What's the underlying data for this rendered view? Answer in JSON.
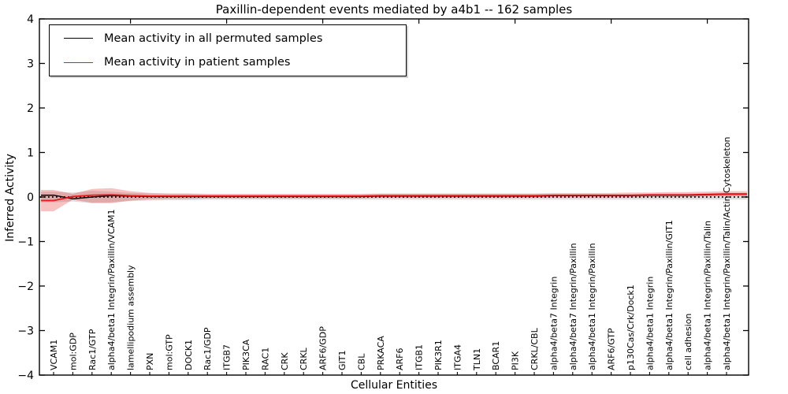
{
  "figure": {
    "title": "Paxillin-dependent events mediated by a4b1 -- 162 samples",
    "xlabel": "Cellular Entities",
    "ylabel": "Inferred Activity",
    "legend": [
      {
        "label": "Mean activity in all permuted samples",
        "color": "#000000"
      },
      {
        "label": "Mean activity in patient samples",
        "color": "#e41a1c"
      }
    ]
  },
  "chart_data": {
    "type": "line",
    "title": "Paxillin-dependent events mediated by a4b1 -- 162 samples",
    "xlabel": "Cellular Entities",
    "ylabel": "Inferred Activity",
    "ylim": [
      -4,
      4
    ],
    "yticks": [
      4,
      3,
      2,
      1,
      0,
      -1,
      -2,
      -3,
      -4
    ],
    "grid": false,
    "legend_position": "upper left",
    "zero_line": {
      "y": 0,
      "style": "dotted",
      "color": "#000000"
    },
    "categories": [
      "VCAM1",
      "mol:GDP",
      "Rac1/GTP",
      "alpha4/beta1 Integrin/Paxillin/VCAM1",
      "lamellipodium assembly",
      "PXN",
      "mol:GTP",
      "DOCK1",
      "Rac1/GDP",
      "ITGB7",
      "PIK3CA",
      "RAC1",
      "CRK",
      "CRKL",
      "ARF6/GDP",
      "GIT1",
      "CBL",
      "PRKACA",
      "ARF6",
      "ITGB1",
      "PIK3R1",
      "ITGA4",
      "TLN1",
      "BCAR1",
      "PI3K",
      "CRKL/CBL",
      "alpha4/beta7 Integrin",
      "alpha4/beta7 Integrin/Paxillin",
      "alpha4/beta1 Integrin/Paxillin",
      "ARF6/GTP",
      "p130Cas/Crk/Dock1",
      "alpha4/beta1 Integrin",
      "alpha4/beta1 Integrin/Paxillin/GIT1",
      "cell adhesion",
      "alpha4/beta1 Integrin/Paxillin/Talin",
      "alpha4/beta1 Integrin/Paxillin/Talin/Actin Cytoskeleton"
    ],
    "series": [
      {
        "name": "Mean activity in all permuted samples",
        "color": "#000000",
        "style": "solid",
        "values": [
          0.04,
          -0.04,
          0.0,
          0.03,
          0.02,
          0.01,
          0.01,
          0.01,
          0.01,
          0.01,
          0.01,
          0.01,
          0.01,
          0.01,
          0.01,
          0.01,
          0.01,
          0.02,
          0.02,
          0.02,
          0.02,
          0.02,
          0.02,
          0.02,
          0.02,
          0.02,
          0.03,
          0.03,
          0.03,
          0.03,
          0.03,
          0.04,
          0.04,
          0.04,
          0.05,
          0.06
        ]
      },
      {
        "name": "Mean activity in patient samples",
        "color": "#e41a1c",
        "style": "solid",
        "values": [
          -0.08,
          0.01,
          0.04,
          0.05,
          0.03,
          0.02,
          0.02,
          0.02,
          0.02,
          0.02,
          0.02,
          0.02,
          0.02,
          0.02,
          0.02,
          0.02,
          0.02,
          0.03,
          0.03,
          0.03,
          0.03,
          0.03,
          0.03,
          0.03,
          0.03,
          0.03,
          0.04,
          0.04,
          0.04,
          0.04,
          0.04,
          0.05,
          0.05,
          0.05,
          0.06,
          0.07
        ]
      }
    ],
    "bands": [
      {
        "name": "permuted-std-band",
        "color": "#000000",
        "opacity": 0.13,
        "upper": [
          0.12,
          0.1,
          0.14,
          0.12,
          0.09,
          0.08,
          0.07,
          0.07,
          0.06,
          0.06,
          0.06,
          0.06,
          0.06,
          0.06,
          0.06,
          0.06,
          0.06,
          0.06,
          0.06,
          0.06,
          0.06,
          0.06,
          0.06,
          0.06,
          0.06,
          0.06,
          0.06,
          0.06,
          0.06,
          0.06,
          0.06,
          0.06,
          0.06,
          0.06,
          0.06,
          0.06
        ],
        "lower": [
          -0.12,
          -0.1,
          -0.14,
          -0.12,
          -0.09,
          -0.08,
          -0.07,
          -0.07,
          -0.06,
          -0.06,
          -0.06,
          -0.06,
          -0.06,
          -0.06,
          -0.06,
          -0.06,
          -0.06,
          -0.06,
          -0.06,
          -0.06,
          -0.06,
          -0.06,
          -0.06,
          -0.06,
          -0.06,
          -0.06,
          -0.06,
          -0.06,
          -0.06,
          -0.06,
          -0.06,
          -0.06,
          -0.06,
          -0.06,
          -0.06,
          -0.06
        ]
      },
      {
        "name": "patient-std-band",
        "color": "#e41a1c",
        "opacity": 0.27,
        "upper": [
          0.16,
          0.07,
          0.18,
          0.2,
          0.13,
          0.09,
          0.08,
          0.08,
          0.07,
          0.07,
          0.07,
          0.07,
          0.07,
          0.07,
          0.07,
          0.07,
          0.07,
          0.08,
          0.08,
          0.08,
          0.08,
          0.08,
          0.08,
          0.08,
          0.08,
          0.08,
          0.09,
          0.09,
          0.09,
          0.09,
          0.1,
          0.1,
          0.11,
          0.11,
          0.12,
          0.13
        ],
        "lower": [
          -0.32,
          -0.06,
          -0.13,
          -0.14,
          -0.08,
          -0.05,
          -0.04,
          -0.04,
          -0.03,
          -0.03,
          -0.03,
          -0.03,
          -0.03,
          -0.03,
          -0.03,
          -0.03,
          -0.03,
          -0.02,
          -0.02,
          -0.02,
          -0.02,
          -0.02,
          -0.02,
          -0.02,
          -0.02,
          -0.02,
          -0.01,
          -0.01,
          -0.01,
          -0.01,
          -0.01,
          0.0,
          0.0,
          0.0,
          0.01,
          0.02
        ]
      }
    ]
  }
}
